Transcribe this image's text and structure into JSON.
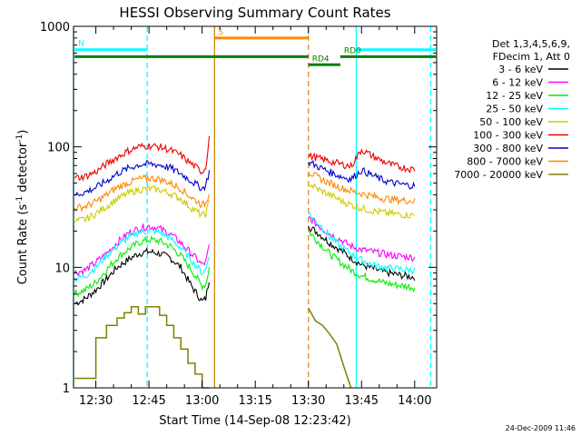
{
  "chart_data": {
    "type": "line",
    "title": "HESSI Observing Summary Count Rates",
    "xlabel": "Start Time (14-Sep-08 12:23:42)",
    "ylabel_main": "Count Rate (s",
    "ylabel_sup1": "-1",
    "ylabel_mid": " detector",
    "ylabel_sup2": "-1",
    "ylabel_end": ")",
    "yscale": "log",
    "ylim": [
      1,
      1000
    ],
    "xlim": [
      -6.3,
      96.2
    ],
    "x_unit": "minutes after 12:30 UT",
    "x_ticks": [
      {
        "x": 0,
        "label": "12:30"
      },
      {
        "x": 15,
        "label": "12:45"
      },
      {
        "x": 30,
        "label": "13:00"
      },
      {
        "x": 45,
        "label": "13:15"
      },
      {
        "x": 60,
        "label": "13:30"
      },
      {
        "x": 75,
        "label": "13:45"
      },
      {
        "x": 90,
        "label": "14:00"
      }
    ],
    "y_ticks": [
      {
        "y": 1,
        "label": "1"
      },
      {
        "y": 10,
        "label": "10"
      },
      {
        "y": 100,
        "label": "100"
      },
      {
        "y": 1000,
        "label": "1000"
      }
    ],
    "legend": {
      "position": "right",
      "header": [
        "Det 1,3,4,5,6,9,",
        "FDecim 1, Att 0"
      ],
      "entries": [
        {
          "label": "3 - 6 keV",
          "color": "#000000"
        },
        {
          "label": "6 - 12 keV",
          "color": "#ff00ff"
        },
        {
          "label": "12 - 25 keV",
          "color": "#00ee00"
        },
        {
          "label": "25 - 50 keV",
          "color": "#00ffff"
        },
        {
          "label": "50 - 100 keV",
          "color": "#cccc00"
        },
        {
          "label": "100 - 300 keV",
          "color": "#ee0000"
        },
        {
          "label": "300 - 800 keV",
          "color": "#0000cc"
        },
        {
          "label": "800 - 7000 keV",
          "color": "#ff8800"
        },
        {
          "label": "7000 - 20000 keV",
          "color": "#808000"
        }
      ]
    },
    "series": [
      {
        "color": "#808000",
        "x": [
          -6,
          0,
          0,
          3,
          3,
          6,
          6,
          8,
          8,
          10,
          10,
          12,
          12,
          14,
          14,
          18,
          18,
          20,
          20,
          22,
          22,
          24,
          24,
          26,
          26,
          28,
          28,
          30,
          30,
          32,
          60,
          60,
          62,
          62,
          64,
          64,
          66,
          66,
          68,
          68,
          70,
          70,
          72
        ],
        "y": [
          1.2,
          1.2,
          2.6,
          2.6,
          3.3,
          3.3,
          3.8,
          3.8,
          4.2,
          4.2,
          4.7,
          4.7,
          4.1,
          4.1,
          4.7,
          4.7,
          4.0,
          4.0,
          3.3,
          3.3,
          2.6,
          2.6,
          2.1,
          2.1,
          1.6,
          1.6,
          1.3,
          1.3,
          1.0,
          1.0,
          4.6,
          4.6,
          3.6,
          3.6,
          3.3,
          3.3,
          2.8,
          2.8,
          2.3,
          2.3,
          1.5,
          1.5,
          1.0
        ]
      },
      {
        "color": "#000000",
        "x": [
          -6,
          -3,
          0,
          3,
          6,
          9,
          12,
          15,
          18,
          21,
          24,
          27,
          30,
          31,
          32,
          60,
          63,
          66,
          69,
          72,
          75,
          78,
          81,
          84,
          87,
          90
        ],
        "y": [
          5,
          5.5,
          6.5,
          8,
          10,
          11.5,
          13,
          13.5,
          13,
          12,
          10,
          7,
          5.2,
          5.5,
          8,
          22,
          19,
          16,
          14,
          12,
          10.5,
          9.8,
          9.2,
          8.8,
          8.5,
          8.3
        ]
      },
      {
        "color": "#00ee00",
        "x": [
          -6,
          -3,
          0,
          3,
          6,
          9,
          12,
          15,
          18,
          21,
          24,
          27,
          30,
          31,
          32,
          60,
          63,
          66,
          69,
          72,
          75,
          78,
          81,
          84,
          87,
          90
        ],
        "y": [
          6,
          6.5,
          7.5,
          9.5,
          12,
          14,
          16,
          17,
          16.5,
          15,
          12.5,
          9.5,
          7,
          7.2,
          10,
          20,
          16,
          13,
          11,
          9.5,
          8.5,
          8,
          7.5,
          7.2,
          7,
          6.8
        ]
      },
      {
        "color": "#ff00ff",
        "x": [
          -6,
          -3,
          0,
          3,
          6,
          9,
          12,
          15,
          18,
          21,
          24,
          27,
          30,
          31,
          32,
          60,
          63,
          66,
          69,
          72,
          75,
          78,
          81,
          84,
          87,
          90
        ],
        "y": [
          9,
          9.5,
          11,
          13,
          16,
          19,
          21,
          22,
          21,
          19,
          16,
          13,
          10.5,
          11,
          15,
          26,
          22,
          19,
          17,
          15,
          14,
          13.5,
          13,
          12.5,
          12.3,
          12
        ]
      },
      {
        "color": "#00ffff",
        "x": [
          -6,
          -3,
          0,
          3,
          6,
          9,
          12,
          15,
          18,
          21,
          24,
          27,
          30,
          31,
          32,
          60,
          63,
          66,
          69,
          72,
          75,
          78,
          81,
          84,
          87,
          90
        ],
        "y": [
          8,
          8.5,
          10,
          12.5,
          15,
          17.5,
          19.5,
          20,
          19.5,
          17.5,
          14.5,
          11.5,
          9,
          9.5,
          13,
          28,
          23,
          18,
          15,
          13,
          11.5,
          10.5,
          10,
          9.8,
          9.6,
          9.5
        ]
      },
      {
        "color": "#cccc00",
        "x": [
          -6,
          -3,
          0,
          3,
          6,
          9,
          12,
          15,
          18,
          21,
          24,
          27,
          30,
          31,
          32,
          60,
          63,
          66,
          69,
          72,
          75,
          78,
          81,
          84,
          87,
          90
        ],
        "y": [
          24,
          25,
          28,
          32,
          37,
          41,
          44,
          45,
          44,
          41,
          37,
          31,
          27,
          28,
          35,
          50,
          44,
          40,
          36,
          33,
          31,
          29.5,
          28.5,
          27.8,
          27.3,
          27
        ]
      },
      {
        "color": "#ff8800",
        "x": [
          -6,
          -3,
          0,
          3,
          6,
          9,
          12,
          15,
          18,
          21,
          24,
          27,
          30,
          31,
          32,
          60,
          63,
          66,
          69,
          72,
          75,
          78,
          81,
          84,
          87,
          90
        ],
        "y": [
          31,
          32,
          35,
          40,
          46,
          50,
          54,
          55,
          54,
          50,
          45,
          38,
          33,
          34,
          42,
          62,
          55,
          50,
          46,
          43,
          41,
          39,
          37.5,
          36.5,
          36,
          35.5
        ]
      },
      {
        "color": "#0000cc",
        "x": [
          -6,
          -3,
          0,
          3,
          6,
          9,
          12,
          15,
          18,
          21,
          24,
          27,
          30,
          31,
          32,
          60,
          63,
          66,
          69,
          72,
          75,
          78,
          81,
          84,
          87,
          90
        ],
        "y": [
          40,
          42,
          46,
          52,
          60,
          66,
          71,
          72,
          71,
          67,
          60,
          52,
          45,
          48,
          62,
          75,
          68,
          62,
          57,
          54,
          64,
          58,
          53,
          50,
          48.5,
          47.5
        ]
      },
      {
        "color": "#ee0000",
        "x": [
          -6,
          -3,
          0,
          3,
          6,
          9,
          12,
          15,
          18,
          21,
          24,
          27,
          30,
          31,
          32,
          60,
          63,
          66,
          69,
          72,
          75,
          78,
          81,
          84,
          87,
          90
        ],
        "y": [
          55,
          57,
          62,
          72,
          82,
          92,
          100,
          102,
          100,
          94,
          85,
          72,
          62,
          68,
          120,
          85,
          80,
          76,
          72,
          69,
          95,
          84,
          76,
          70,
          67,
          65
        ]
      }
    ],
    "segment_bars": [
      {
        "label": "N",
        "color": "#00ffff",
        "x": [
          -6,
          14.5
        ],
        "y": 640
      },
      {
        "label": "",
        "color": "#00ffff",
        "x": [
          73.5,
          96
        ],
        "y": 640
      },
      {
        "label": "",
        "color": "#008000",
        "x": [
          -6,
          60
        ],
        "y": 560
      },
      {
        "label": "RD0",
        "color": "#008000",
        "x": [
          69,
          96
        ],
        "y": 560
      },
      {
        "label": "S",
        "color": "#ff8800",
        "x": [
          33.5,
          60
        ],
        "y": 800
      },
      {
        "label": "RD4",
        "color": "#008000",
        "x": [
          60,
          69
        ],
        "y": 480
      }
    ],
    "vlines": [
      {
        "x": -6.3,
        "color": "#00ffff",
        "style": "solid"
      },
      {
        "x": 14.5,
        "color": "#00ffff",
        "style": "dashed"
      },
      {
        "x": 33.5,
        "color": "#cc8800",
        "style": "solid"
      },
      {
        "x": 60,
        "color": "#dd8833",
        "style": "dashed"
      },
      {
        "x": 73.5,
        "color": "#00ffff",
        "style": "solid"
      },
      {
        "x": 94.5,
        "color": "#00ffff",
        "style": "dashed"
      }
    ],
    "footer_date": "24-Dec-2009 11:46"
  }
}
